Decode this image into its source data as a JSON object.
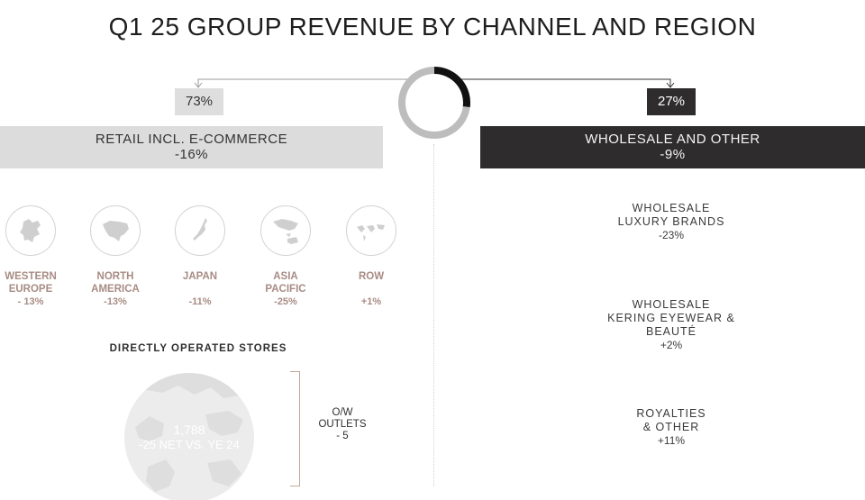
{
  "title": "Q1 25 GROUP REVENUE BY CHANNEL AND REGION",
  "channels": {
    "retail": {
      "share": "73%",
      "share_value": 73,
      "name": "RETAIL INCL. E-COMMERCE",
      "change": "-16%"
    },
    "wholesale": {
      "share": "27%",
      "share_value": 27,
      "name": "WHOLESALE AND OTHER",
      "change": "-9%"
    }
  },
  "regions": [
    {
      "line1": "WESTERN",
      "line2": "EUROPE",
      "change": "- 13%",
      "icon": "europe-map-icon"
    },
    {
      "line1": "NORTH",
      "line2": "AMERICA",
      "change": "-13%",
      "icon": "north-america-map-icon"
    },
    {
      "line1": "JAPAN",
      "line2": "",
      "change": "-11%",
      "icon": "japan-map-icon"
    },
    {
      "line1": "ASIA",
      "line2": "PACIFIC",
      "change": "-25%",
      "icon": "asia-pacific-map-icon"
    },
    {
      "line1": "ROW",
      "line2": "",
      "change": "+1%",
      "icon": "world-map-icon"
    }
  ],
  "stores": {
    "heading": "DIRECTLY OPERATED STORES",
    "count": "1,788",
    "delta": "-25 NET VS. YE 24",
    "outlets_line1": "O/W",
    "outlets_line2": "OUTLETS",
    "outlets_value": "- 5"
  },
  "wholesale_breakdown": [
    {
      "line1": "WHOLESALE",
      "line2": "LUXURY BRANDS",
      "line3": "",
      "change": "-23%"
    },
    {
      "line1": "WHOLESALE",
      "line2": "KERING EYEWEAR &",
      "line3": "BEAUTÉ",
      "change": "+2%"
    },
    {
      "line1": "ROYALTIES",
      "line2": "& OTHER",
      "line3": "",
      "change": "+11%"
    }
  ],
  "colors": {
    "dark": "#2e2c2c",
    "light": "#dcdcdc",
    "accent": "#a88c84",
    "donut_light": "#bdbdbd",
    "donut_dark": "#111111"
  }
}
